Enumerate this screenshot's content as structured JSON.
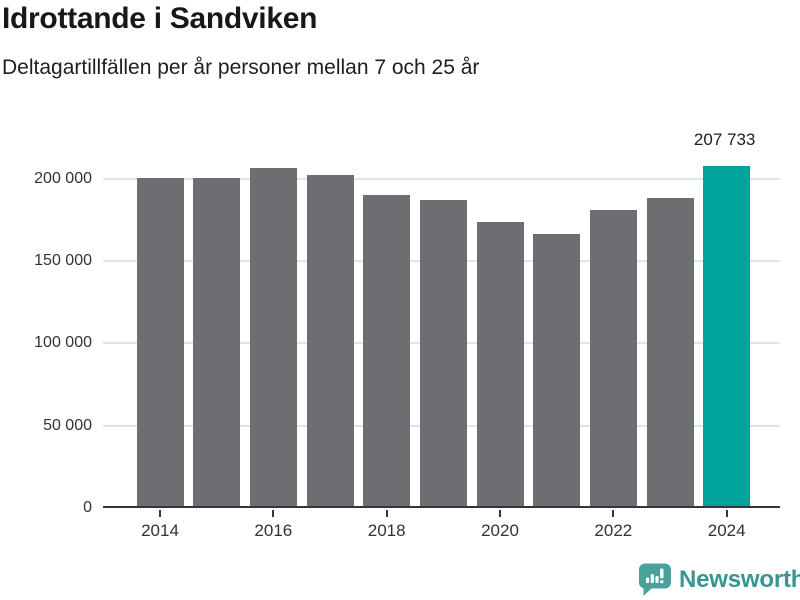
{
  "chart_data": {
    "type": "bar",
    "title": "Idrottande i Sandviken",
    "subtitle": "Deltagartillfällen per år personer mellan 7 och 25 år",
    "categories": [
      "2014",
      "2015",
      "2016",
      "2017",
      "2018",
      "2019",
      "2020",
      "2021",
      "2022",
      "2023",
      "2024"
    ],
    "values": [
      200600,
      200200,
      206600,
      202000,
      190100,
      186800,
      173900,
      166200,
      181000,
      188500,
      207733
    ],
    "highlight": {
      "index": 10,
      "category": "2024",
      "value": 207733,
      "label": "207 733"
    },
    "yticks": [
      0,
      50000,
      100000,
      150000,
      200000
    ],
    "ytick_labels": [
      "0",
      "50 000",
      "100 000",
      "150 000",
      "200 000"
    ],
    "xticks": [
      "2014",
      "2016",
      "2018",
      "2020",
      "2022",
      "2024"
    ],
    "ylim": [
      0,
      223500
    ],
    "grid": "horizontal-only",
    "legend": "none",
    "colors": {
      "bar": "#6d6d72",
      "highlight": "#00a49b",
      "grid": "#e4e4e4",
      "axis": "#35363a",
      "label": "#333333"
    }
  },
  "footer": {
    "brand": "Newsworthy",
    "brand_color": "#38968f",
    "icon_color": "#4aa29a",
    "icon": "newsworthy-chart-bubble-icon"
  }
}
